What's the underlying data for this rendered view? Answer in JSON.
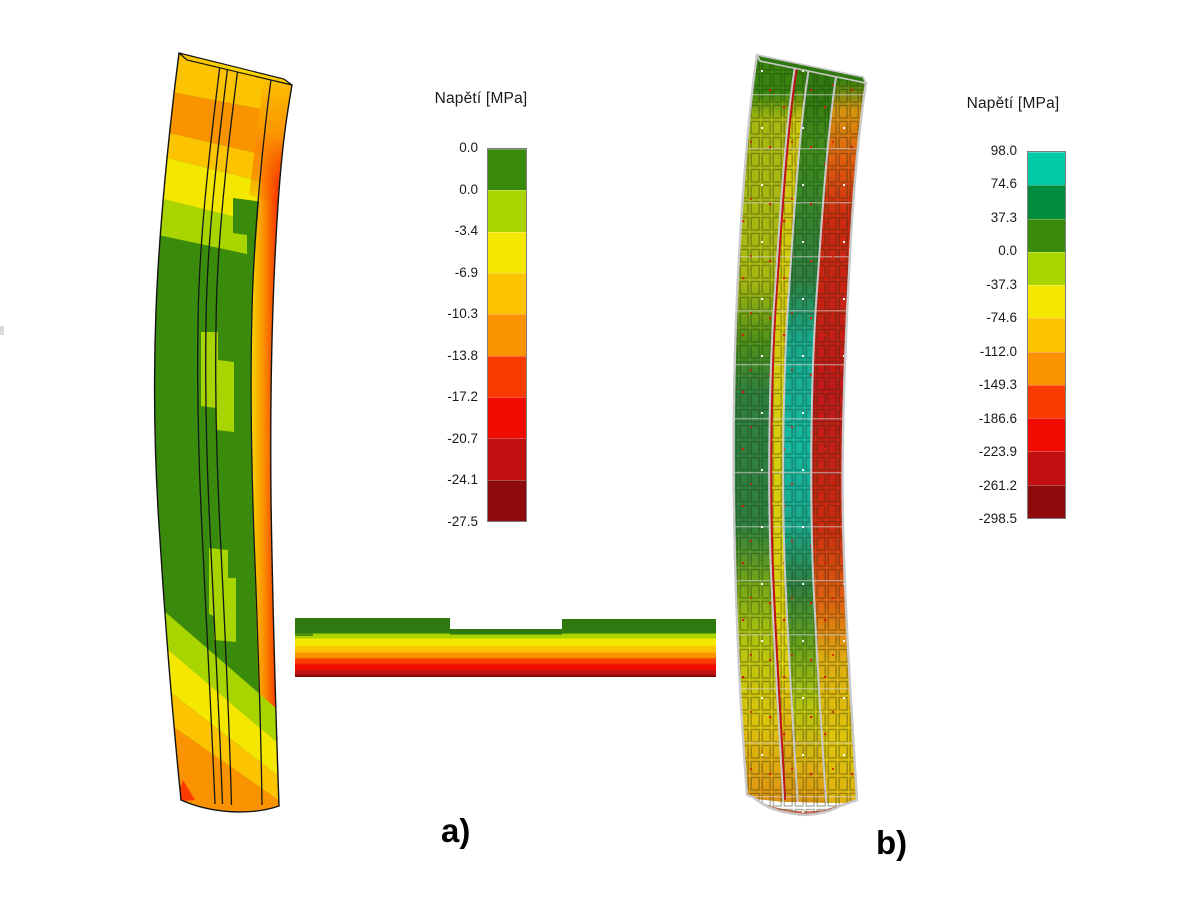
{
  "figure": {
    "label_a": "a)",
    "label_b": "b)"
  },
  "legend_a": {
    "title": "Napětí [MPa]",
    "ticks": [
      "0.0",
      "0.0",
      "-3.4",
      "-6.9",
      "-10.3",
      "-13.8",
      "-17.2",
      "-20.7",
      "-24.1",
      "-27.5"
    ],
    "colors": [
      "#3A8A0C",
      "#A8D400",
      "#F5E800",
      "#FBC300",
      "#FB9300",
      "#FA3C00",
      "#F20B00",
      "#C21010",
      "#8C0A0A"
    ]
  },
  "legend_b": {
    "title": "Napětí [MPa]",
    "ticks": [
      "98.0",
      "74.6",
      "37.3",
      "0.0",
      "-37.3",
      "-74.6",
      "-112.0",
      "-149.3",
      "-186.6",
      "-223.9",
      "-261.2",
      "-298.5"
    ],
    "colors": [
      "#00C9A6",
      "#048C3E",
      "#3A8A0C",
      "#A8D400",
      "#F5E800",
      "#FBC300",
      "#FB9300",
      "#FA3C00",
      "#F20B00",
      "#C21010",
      "#8C0A0A"
    ]
  }
}
